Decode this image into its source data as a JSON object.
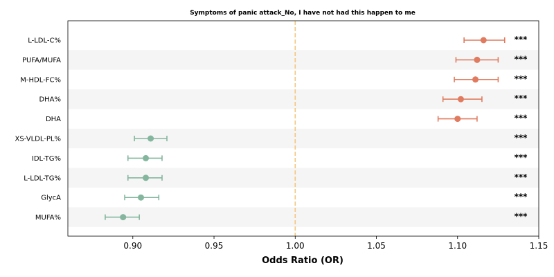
{
  "chart_data": {
    "type": "forest",
    "title": "Symptoms of panic attack_No, I have not had this happen to me",
    "xlabel": "Odds Ratio (OR)",
    "ylabel": "",
    "xlim": [
      0.86,
      1.15
    ],
    "xticks": [
      "0.90",
      "0.95",
      "1.00",
      "1.05",
      "1.10",
      "1.15"
    ],
    "xtick_values": [
      0.9,
      0.95,
      1.0,
      1.05,
      1.1,
      1.15
    ],
    "reference_line": 1.0,
    "grid": false,
    "colors": {
      "positive": "#e07b5f",
      "negative": "#84b69e",
      "reference": "#f5c77e",
      "band": "#f5f5f5"
    },
    "rows": [
      {
        "label": "L-LDL-C%",
        "or": 1.116,
        "lo": 1.104,
        "hi": 1.129,
        "sig": "***"
      },
      {
        "label": "PUFA/MUFA",
        "or": 1.112,
        "lo": 1.099,
        "hi": 1.125,
        "sig": "***"
      },
      {
        "label": "M-HDL-FC%",
        "or": 1.111,
        "lo": 1.098,
        "hi": 1.125,
        "sig": "***"
      },
      {
        "label": "DHA%",
        "or": 1.102,
        "lo": 1.091,
        "hi": 1.115,
        "sig": "***"
      },
      {
        "label": "DHA",
        "or": 1.1,
        "lo": 1.088,
        "hi": 1.112,
        "sig": "***"
      },
      {
        "label": "XS-VLDL-PL%",
        "or": 0.911,
        "lo": 0.901,
        "hi": 0.921,
        "sig": "***"
      },
      {
        "label": "IDL-TG%",
        "or": 0.908,
        "lo": 0.897,
        "hi": 0.918,
        "sig": "***"
      },
      {
        "label": "L-LDL-TG%",
        "or": 0.908,
        "lo": 0.897,
        "hi": 0.918,
        "sig": "***"
      },
      {
        "label": "GlycA",
        "or": 0.905,
        "lo": 0.895,
        "hi": 0.916,
        "sig": "***"
      },
      {
        "label": "MUFA%",
        "or": 0.894,
        "lo": 0.883,
        "hi": 0.904,
        "sig": "***"
      }
    ]
  }
}
